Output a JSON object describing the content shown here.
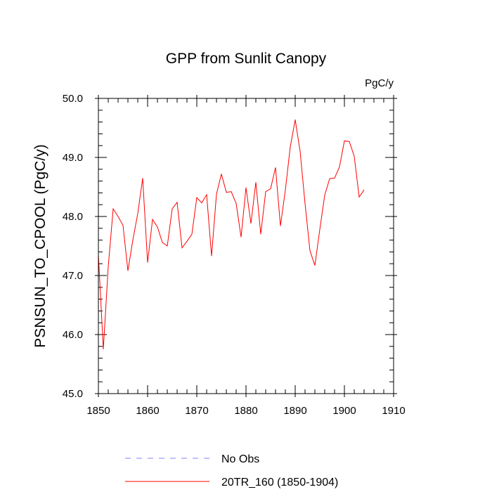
{
  "chart_data": {
    "type": "line",
    "title": "GPP from Sunlit Canopy",
    "units_label": "PgC/y",
    "xlabel": "",
    "ylabel": "PSNSUN_TO_CPOOL  (PgC/y)",
    "xlim": [
      1850,
      1910
    ],
    "ylim": [
      45.0,
      50.0
    ],
    "x_ticks": [
      1850,
      1860,
      1870,
      1880,
      1890,
      1900,
      1910
    ],
    "x_tick_labels": [
      "1850",
      "1860",
      "1870",
      "1880",
      "1890",
      "1900",
      "1910"
    ],
    "y_ticks": [
      45.0,
      46.0,
      47.0,
      48.0,
      49.0,
      50.0
    ],
    "y_tick_labels": [
      "45.0",
      "46.0",
      "47.0",
      "48.0",
      "49.0",
      "50.0"
    ],
    "series": [
      {
        "name": "20TR_160 (1850-1904)",
        "color": "#ff0000",
        "style": "solid",
        "x": [
          1850,
          1851,
          1852,
          1853,
          1854,
          1855,
          1856,
          1857,
          1858,
          1859,
          1860,
          1861,
          1862,
          1863,
          1864,
          1865,
          1866,
          1867,
          1868,
          1869,
          1870,
          1871,
          1872,
          1873,
          1874,
          1875,
          1876,
          1877,
          1878,
          1879,
          1880,
          1881,
          1882,
          1883,
          1884,
          1885,
          1886,
          1887,
          1888,
          1889,
          1890,
          1891,
          1892,
          1893,
          1894,
          1895,
          1896,
          1897,
          1898,
          1899,
          1900,
          1901,
          1902,
          1903,
          1904
        ],
        "values": [
          47.35,
          45.75,
          47.15,
          48.13,
          48.0,
          47.85,
          47.08,
          47.6,
          48.05,
          48.65,
          47.22,
          47.95,
          47.82,
          47.56,
          47.5,
          48.13,
          48.24,
          47.47,
          47.58,
          47.7,
          48.32,
          48.23,
          48.37,
          47.33,
          48.38,
          48.72,
          48.41,
          48.42,
          48.22,
          47.65,
          48.49,
          47.88,
          48.58,
          47.7,
          48.42,
          48.47,
          48.83,
          47.84,
          48.45,
          49.18,
          49.64,
          49.1,
          48.22,
          47.42,
          47.17,
          47.78,
          48.36,
          48.64,
          48.65,
          48.84,
          49.28,
          49.27,
          49.02,
          48.33,
          48.45
        ]
      },
      {
        "name": "No Obs",
        "color": "#8080ff",
        "style": "dashed",
        "x": [],
        "values": []
      }
    ],
    "legend": {
      "position": "bottom",
      "entries": [
        "No Obs",
        "20TR_160 (1850-1904)"
      ]
    }
  }
}
